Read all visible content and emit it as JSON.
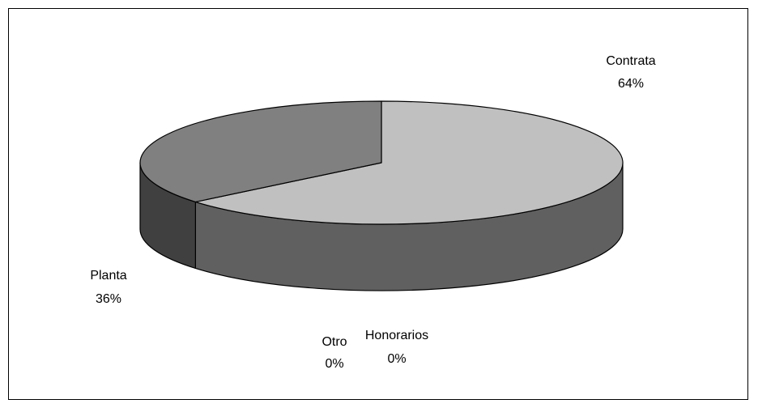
{
  "chart_data": {
    "type": "pie",
    "style": "3d",
    "slices": [
      {
        "label": "Contrata",
        "value": 64,
        "percent_text": "64%",
        "color": "#c0c0c0",
        "side_color": "#606060"
      },
      {
        "label": "Planta",
        "value": 36,
        "percent_text": "36%",
        "color": "#808080",
        "side_color": "#404040"
      },
      {
        "label": "Otro",
        "value": 0,
        "percent_text": "0%",
        "color": "#808080",
        "side_color": "#404040"
      },
      {
        "label": "Honorarios",
        "value": 0,
        "percent_text": "0%",
        "color": "#808080",
        "side_color": "#404040"
      }
    ],
    "legend": "none"
  }
}
